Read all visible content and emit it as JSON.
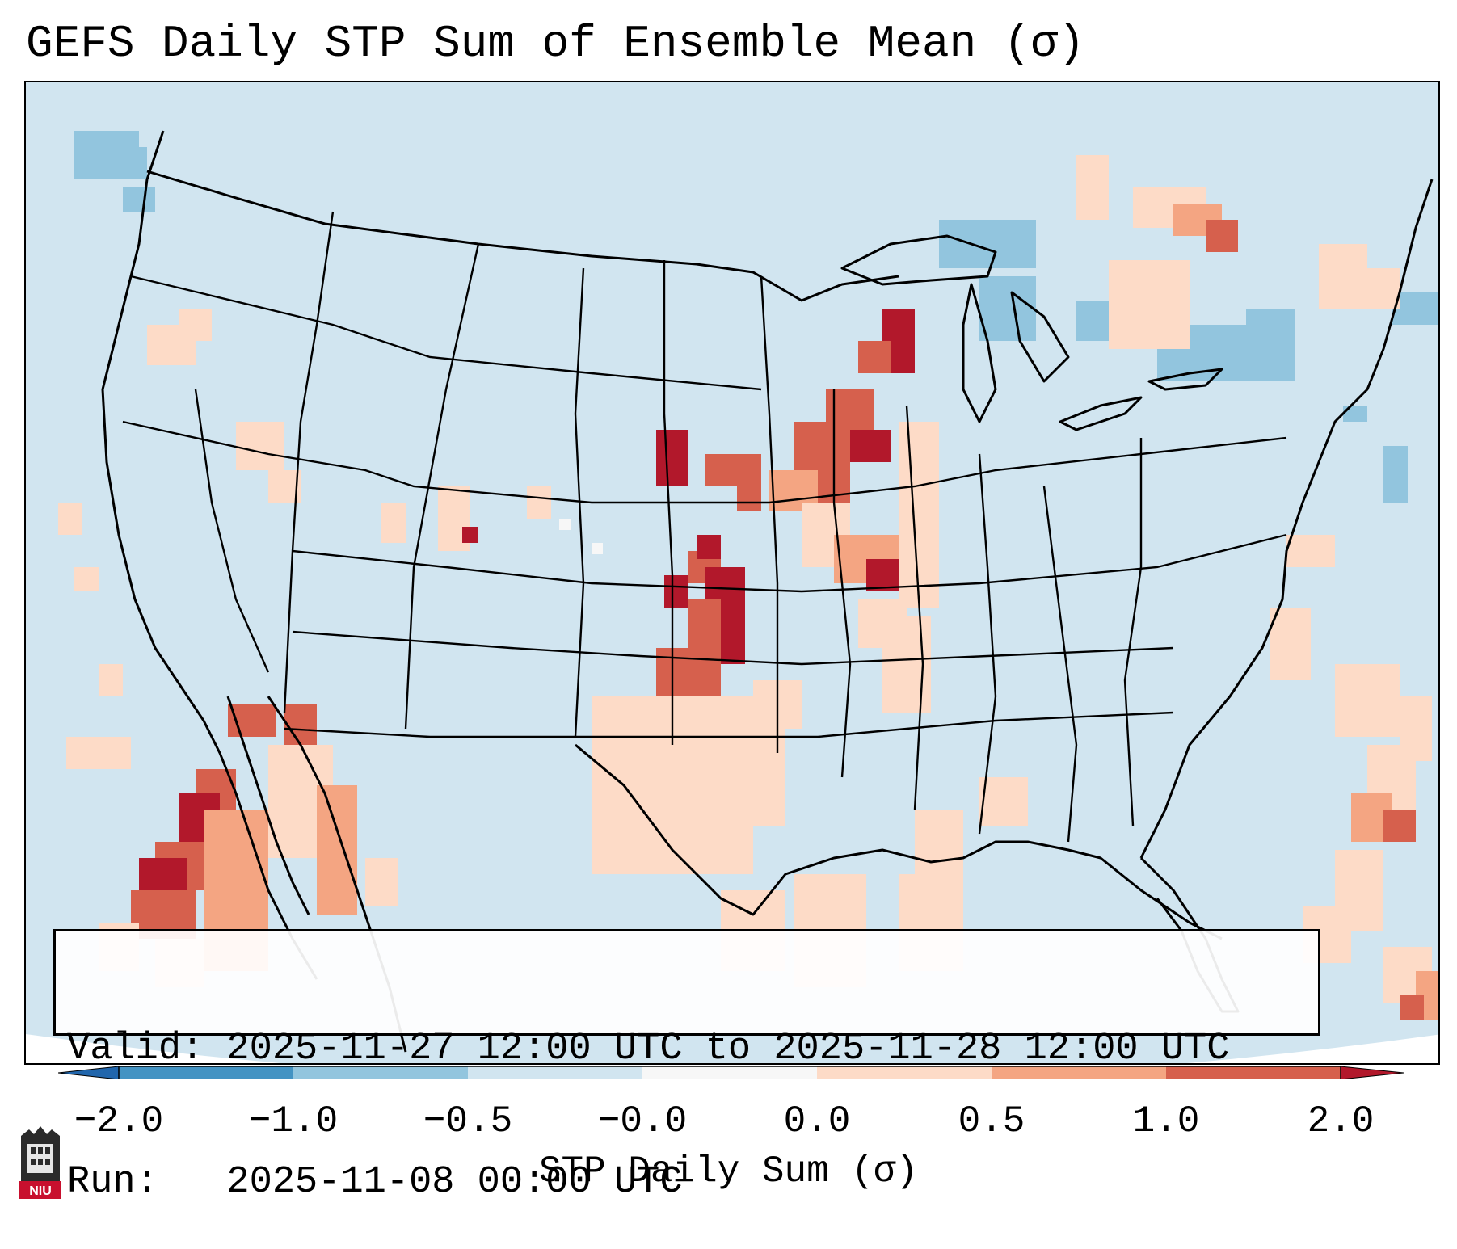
{
  "title": "GEFS Daily STP Sum of Ensemble Mean (σ)",
  "info": {
    "valid_line": "Valid: 2025-11-27 12:00 UTC to 2025-11-28 12:00 UTC",
    "run_line": "Run:   2025-11-08 00:00 UTC"
  },
  "colorbar": {
    "label": "STP Daily Sum (σ)",
    "ticks": [
      "−2.0",
      "−1.0",
      "−0.5",
      "−0.0",
      "0.0",
      "0.5",
      "1.0",
      "2.0"
    ],
    "bins": [
      {
        "range": "-2.0 to -1.0",
        "color": "#4393c3"
      },
      {
        "range": "-1.0 to -0.5",
        "color": "#92c5de"
      },
      {
        "range": "-0.5 to -0.0",
        "color": "#d1e5f0"
      },
      {
        "range": "-0.0 to 0.0",
        "color": "#f7f7f7"
      },
      {
        "range": "0.0 to 0.5",
        "color": "#fddbc7"
      },
      {
        "range": "0.5 to 1.0",
        "color": "#f4a582"
      },
      {
        "range": "1.0 to 2.0",
        "color": "#d6604d"
      }
    ],
    "extend_low_color": "#2166ac",
    "extend_high_color": "#b2182b"
  },
  "map": {
    "background_color": "#d1e5f0",
    "region": "CONUS",
    "features": [
      "state borders",
      "coastlines",
      "country borders"
    ]
  },
  "logo": {
    "text": "NIU"
  }
}
